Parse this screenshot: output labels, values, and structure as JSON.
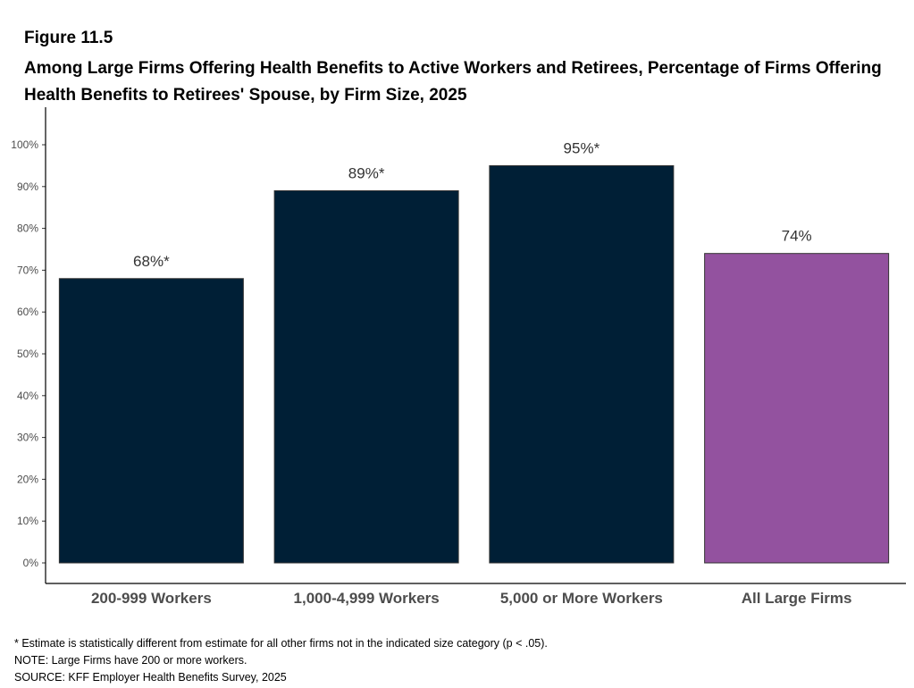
{
  "figure": {
    "label": "Figure 11.5",
    "title": "Among Large Firms Offering Health Benefits to Active Workers and Retirees, Percentage of Firms Offering Health Benefits to Retirees' Spouse, by Firm Size, 2025"
  },
  "chart_data": {
    "type": "bar",
    "title": "Among Large Firms Offering Health Benefits to Active Workers and Retirees, Percentage of Firms Offering Health Benefits to Retirees' Spouse, by Firm Size, 2025",
    "categories": [
      "200-999 Workers",
      "1,000-4,999 Workers",
      "5,000 or More Workers",
      "All Large Firms"
    ],
    "values": [
      68,
      89,
      95,
      74
    ],
    "data_labels": [
      "68%*",
      "89%*",
      "95%*",
      "74%"
    ],
    "bar_colors": [
      "#001f36",
      "#001f36",
      "#001f36",
      "#93529f"
    ],
    "ylim": [
      0,
      100
    ],
    "yticks": [
      0,
      10,
      20,
      30,
      40,
      50,
      60,
      70,
      80,
      90,
      100
    ],
    "ytick_labels": [
      "0%",
      "10%",
      "20%",
      "30%",
      "40%",
      "50%",
      "60%",
      "70%",
      "80%",
      "90%",
      "100%"
    ],
    "xlabel": "",
    "ylabel": "",
    "grid": false
  },
  "notes": {
    "estimate_note": "* Estimate is statistically different from estimate for all other firms not in the indicated size category (p < .05).",
    "note": "NOTE: Large Firms have 200 or more workers.",
    "source": "SOURCE: KFF Employer Health Benefits Survey, 2025"
  }
}
